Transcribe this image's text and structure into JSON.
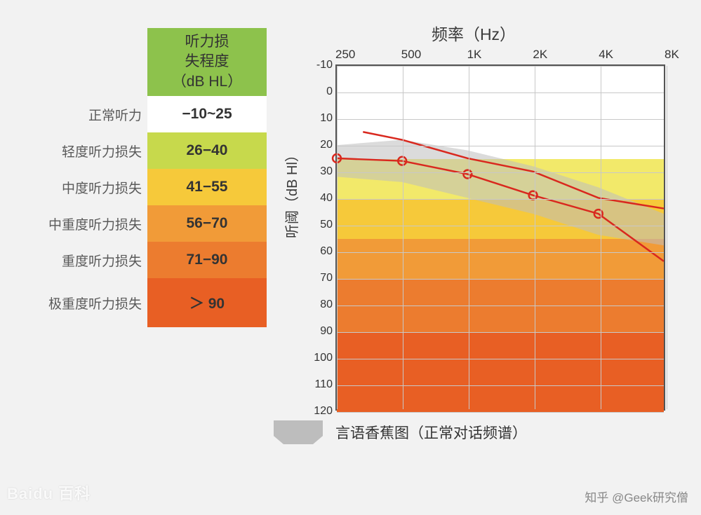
{
  "legend": {
    "header_line1": "听力损",
    "header_line2": "失程度",
    "header_line3": "（dB HL）",
    "header_bg": "#8dc24c",
    "rows": [
      {
        "label": "正常听力",
        "value": "−10~25",
        "bg": "#ffffff"
      },
      {
        "label": "轻度听力损失",
        "value": "26−40",
        "bg": "#c7d94c"
      },
      {
        "label": "中度听力损失",
        "value": "41−55",
        "bg": "#f6c93a"
      },
      {
        "label": "中重度听力损失",
        "value": "56−70",
        "bg": "#f19b38"
      },
      {
        "label": "重度听力损失",
        "value": "71−90",
        "bg": "#ec7c2f"
      },
      {
        "label": "极重度听力损失",
        "value": "＞ 90",
        "bg": "#e85f24"
      }
    ]
  },
  "chart": {
    "title": "频率（Hz）",
    "x_ticks": [
      "250",
      "500",
      "1K",
      "2K",
      "4K",
      "8K"
    ],
    "x_idx": [
      0,
      1,
      2,
      3,
      4,
      5
    ],
    "x_count": 6,
    "y_min": -10,
    "y_max": 120,
    "y_ticks": [
      -10,
      0,
      10,
      20,
      30,
      40,
      50,
      60,
      70,
      80,
      90,
      100,
      110,
      120
    ],
    "y_axis_label": "听阈（dB Hl）",
    "bands": [
      {
        "from": -10,
        "to": 25,
        "color": "#ffffff"
      },
      {
        "from": 25,
        "to": 40,
        "color": "#f2e96a"
      },
      {
        "from": 40,
        "to": 55,
        "color": "#f6c93a"
      },
      {
        "from": 55,
        "to": 70,
        "color": "#f19b38"
      },
      {
        "from": 70,
        "to": 90,
        "color": "#ec7c2f"
      },
      {
        "from": 90,
        "to": 120,
        "color": "#e85f24"
      }
    ],
    "grid_color": "#c8c8c8",
    "banana": {
      "color": "#bdbdbd",
      "opacity": 0.55,
      "points_top": [
        [
          0,
          20
        ],
        [
          1,
          18
        ],
        [
          2,
          22
        ],
        [
          3,
          28
        ],
        [
          4,
          36
        ],
        [
          5,
          46
        ]
      ],
      "points_bottom": [
        [
          5,
          58
        ],
        [
          4,
          54
        ],
        [
          3,
          46
        ],
        [
          2,
          40
        ],
        [
          1,
          34
        ],
        [
          0,
          32
        ]
      ]
    },
    "line_color": "#d9281e",
    "line_width": 2.5,
    "marker_radius": 6,
    "series_upper": [
      [
        0.4,
        15
      ],
      [
        1,
        18
      ],
      [
        2,
        25
      ],
      [
        3,
        30
      ],
      [
        4,
        40
      ],
      [
        5,
        44
      ]
    ],
    "series_lower": [
      [
        0,
        25
      ],
      [
        1,
        26
      ],
      [
        2,
        31
      ],
      [
        3,
        39
      ],
      [
        4,
        46
      ],
      [
        5,
        64
      ]
    ],
    "markers": [
      [
        0,
        25
      ],
      [
        1,
        26
      ],
      [
        2,
        31
      ],
      [
        3,
        39
      ],
      [
        4,
        46
      ]
    ]
  },
  "footer": {
    "swatch_color": "#bdbdbd",
    "text": "言语香蕉图（正常对话频谱）"
  },
  "watermark_left": "Baidu 百科",
  "watermark_right": "知乎 @Geek研究僧"
}
